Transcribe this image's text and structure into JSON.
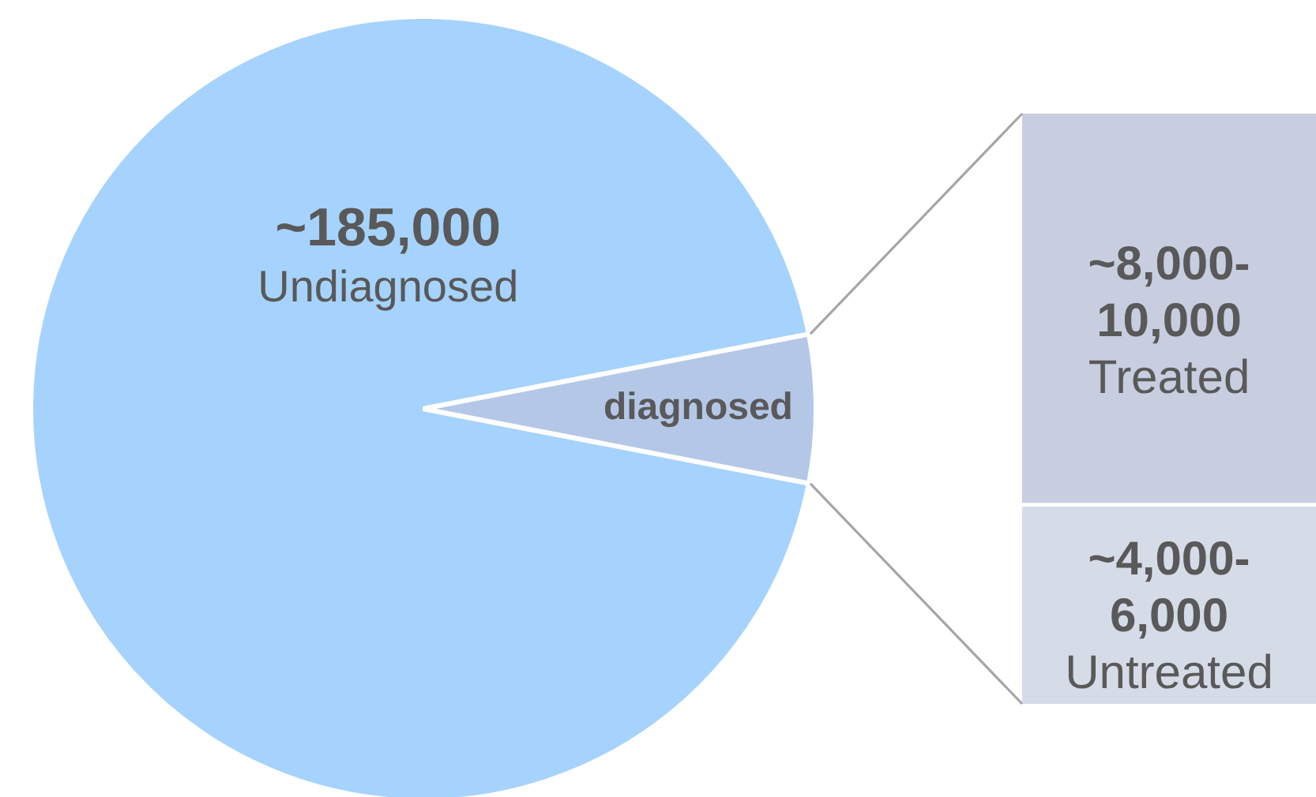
{
  "chart_data": [
    {
      "type": "pie",
      "categories": [
        "Undiagnosed",
        "diagnosed"
      ],
      "values": [
        185000,
        12000
      ],
      "value_labels": [
        "~185,000",
        null
      ],
      "colors": [
        "#a6d3fd",
        "#b4c7e7"
      ]
    },
    {
      "type": "bar",
      "stacked": true,
      "categories": [
        null
      ],
      "series": [
        {
          "name": "Untreated",
          "color": "#d5dbe7",
          "values": [
            4000
          ],
          "value_labels": [
            "~4,000-6,000"
          ]
        },
        {
          "name": "Treated",
          "color": "#c8cee0",
          "values": [
            8000
          ],
          "value_labels": [
            "~8,000-10,000"
          ]
        }
      ]
    }
  ]
}
